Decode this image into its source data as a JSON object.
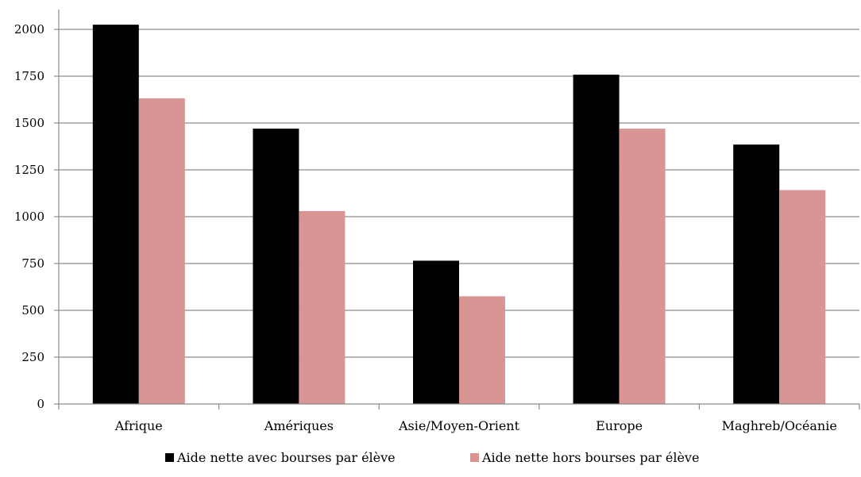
{
  "chart_data": {
    "type": "bar",
    "title": "",
    "xlabel": "",
    "ylabel": "",
    "categories": [
      "Afrique",
      "Amériques",
      "Asie/Moyen-Orient",
      "Europe",
      "Maghreb/Océanie"
    ],
    "series": [
      {
        "name": "Aide nette avec bourses par élève",
        "color": "#000000",
        "values": [
          2025,
          1470,
          765,
          1758,
          1385
        ]
      },
      {
        "name": "Aide nette hors bourses par élève",
        "color": "#d99594",
        "values": [
          1632,
          1030,
          575,
          1470,
          1142
        ]
      }
    ],
    "ylim": [
      0,
      2000
    ],
    "yticks": [
      0,
      250,
      500,
      750,
      1000,
      1250,
      1500,
      1750,
      2000
    ],
    "grid": true,
    "legend_position": "bottom"
  }
}
